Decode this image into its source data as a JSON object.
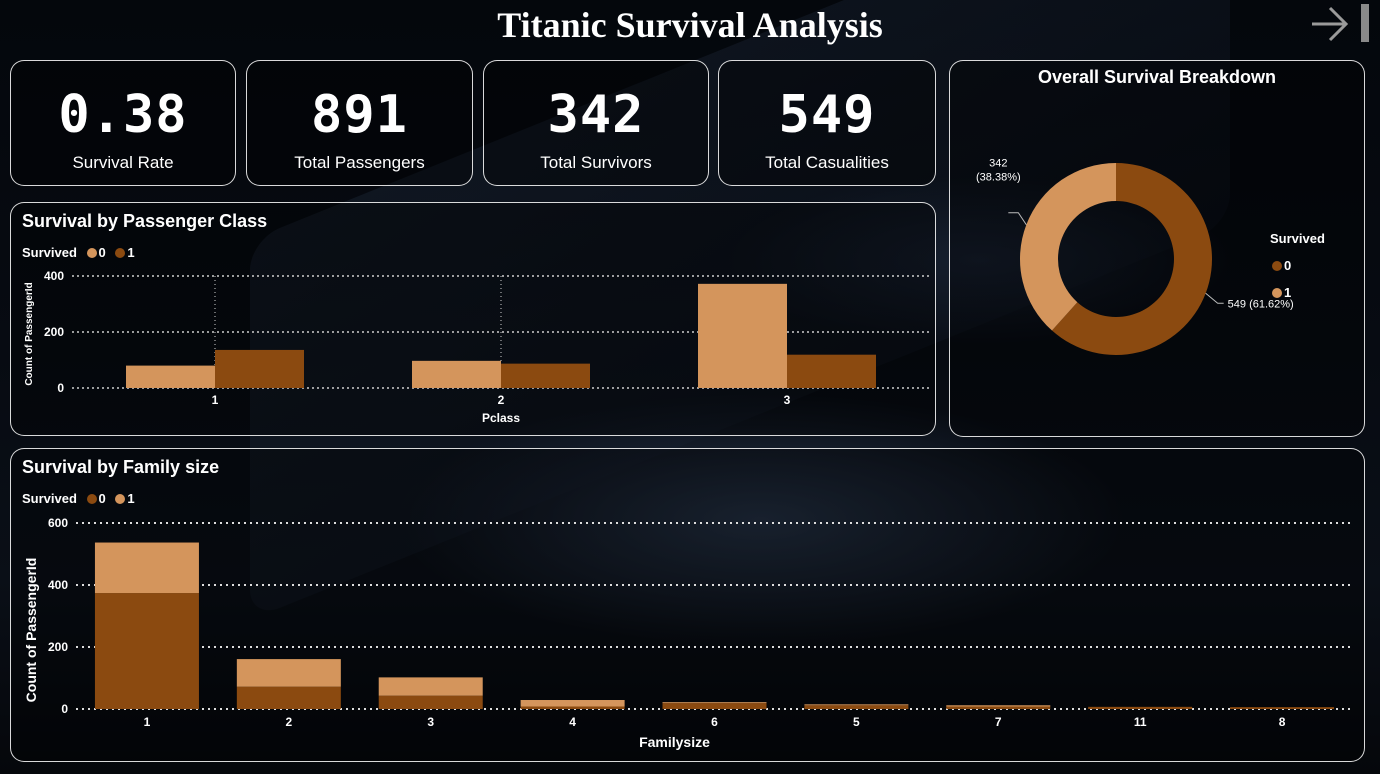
{
  "page": {
    "title": "Titanic Survival Analysis",
    "nav_icon": "arrow-right-icon"
  },
  "colors": {
    "survived_0": "#8B4A10",
    "survived_1": "#D4955C"
  },
  "kpis": [
    {
      "value": "0.38",
      "label": "Survival Rate"
    },
    {
      "value": "891",
      "label": "Total Passengers"
    },
    {
      "value": "342",
      "label": "Total Survivors"
    },
    {
      "value": "549",
      "label": "Total Casualities"
    }
  ],
  "chart_data": [
    {
      "type": "bar",
      "title": "Survival by Passenger Class",
      "legend_title": "Survived",
      "legend": [
        "0",
        "1"
      ],
      "xlabel": "Pclass",
      "ylabel": "Count of PassengerId",
      "categories": [
        "1",
        "2",
        "3"
      ],
      "series": [
        {
          "name": "0",
          "values": [
            80,
            97,
            372
          ]
        },
        {
          "name": "1",
          "values": [
            136,
            87,
            119
          ]
        }
      ],
      "yticks": [
        "0",
        "200",
        "400"
      ],
      "ylim": [
        0,
        420
      ],
      "grid": true,
      "mode": "clustered"
    },
    {
      "type": "pie",
      "title": "Overall Survival Breakdown",
      "legend_title": "Survived",
      "legend": [
        "0",
        "1"
      ],
      "labels": [
        "0",
        "1"
      ],
      "values": [
        549,
        342
      ],
      "data_labels": [
        "549 (61.62%)",
        "342 (38.38%)"
      ],
      "donut": true,
      "legend_position": "right"
    },
    {
      "type": "bar",
      "title": "Survival by Family size",
      "legend_title": "Survived",
      "legend": [
        "0",
        "1"
      ],
      "xlabel": "Familysize",
      "ylabel": "Count of PassengerId",
      "categories": [
        "1",
        "2",
        "3",
        "4",
        "6",
        "5",
        "7",
        "11",
        "8"
      ],
      "series": [
        {
          "name": "0",
          "values": [
            374,
            72,
            43,
            8,
            19,
            12,
            8,
            7,
            6
          ]
        },
        {
          "name": "1",
          "values": [
            163,
            89,
            59,
            21,
            3,
            3,
            4,
            0,
            0
          ]
        }
      ],
      "yticks": [
        "0",
        "200",
        "400",
        "600"
      ],
      "ylim": [
        0,
        600
      ],
      "grid": true,
      "mode": "stacked"
    }
  ]
}
